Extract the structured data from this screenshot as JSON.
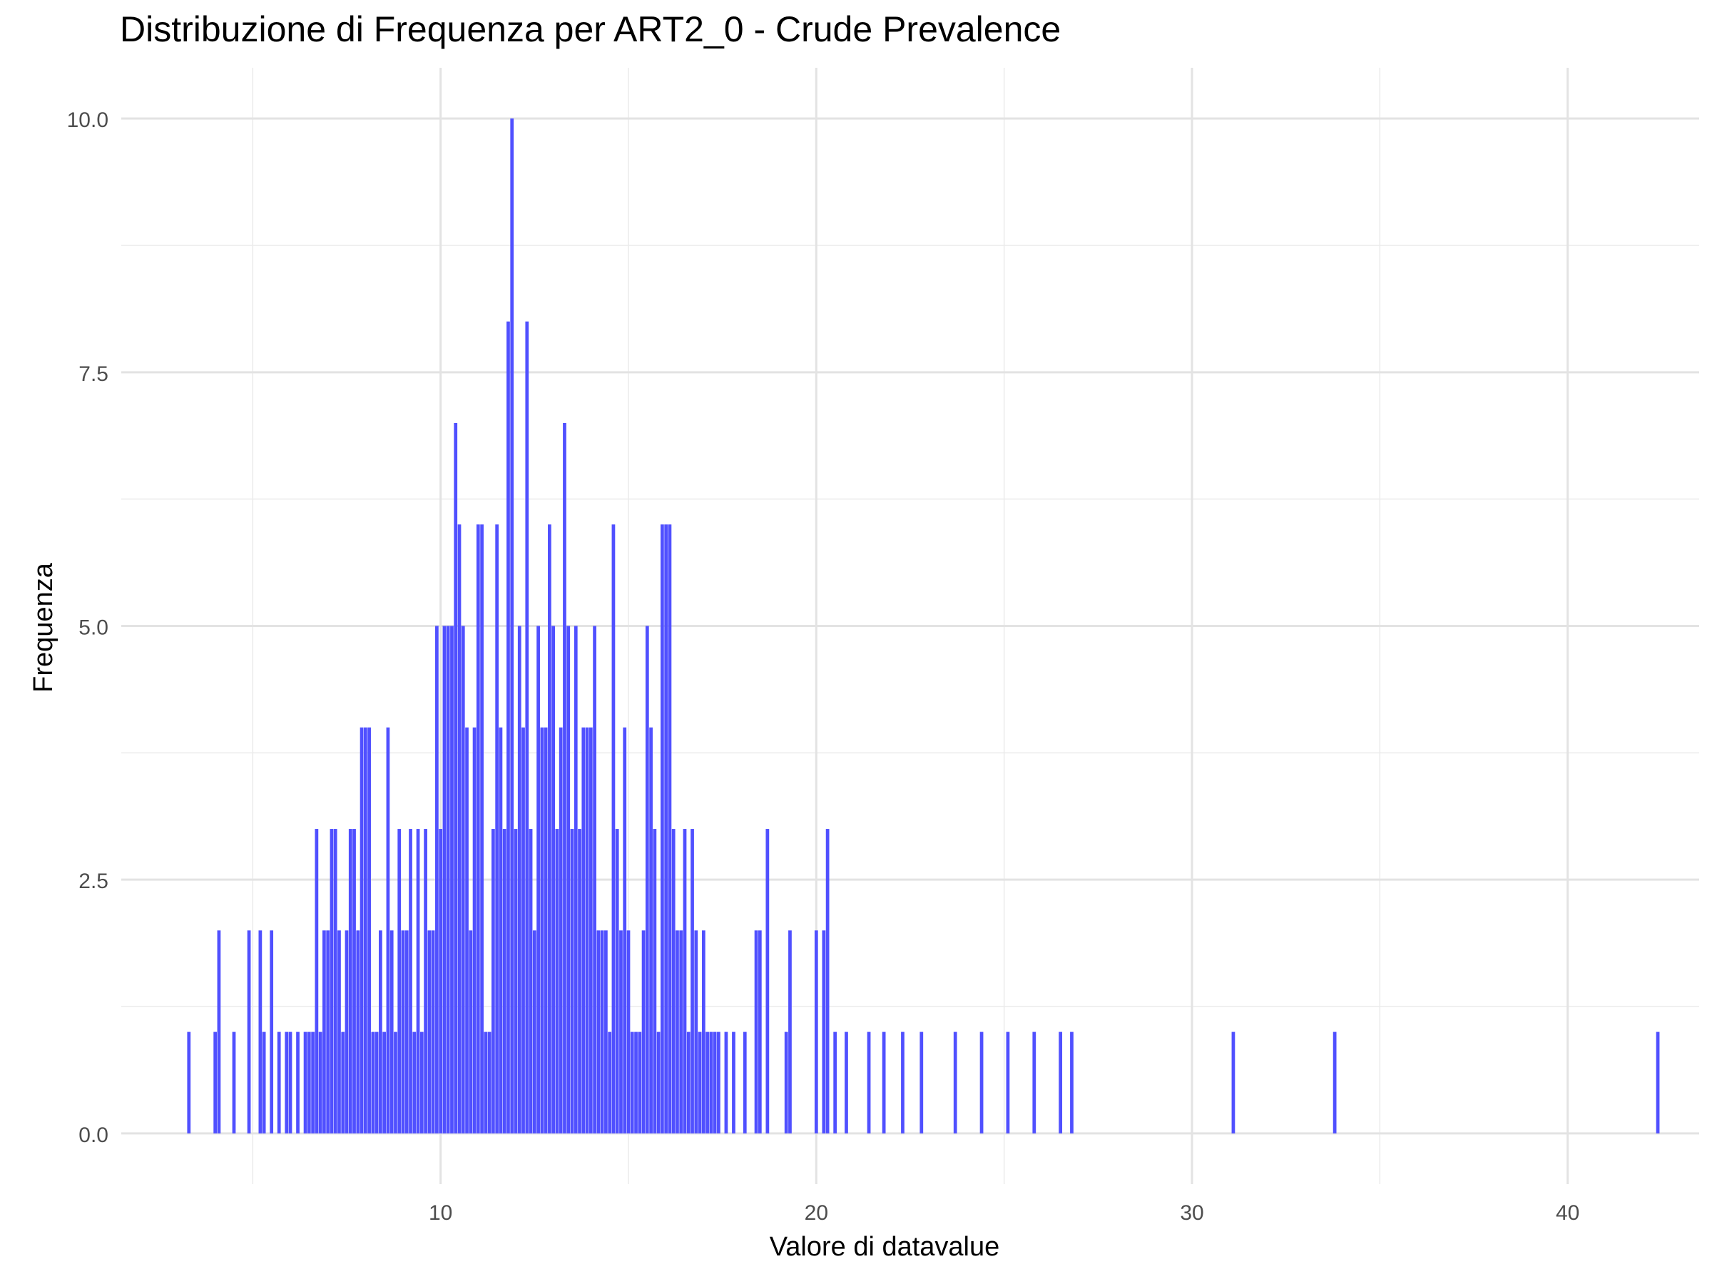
{
  "chart_data": {
    "type": "bar",
    "title": "Distribuzione di Frequenza per ART2_0 - Crude Prevalence",
    "xlabel": "Valore di datavalue",
    "ylabel": "Frequenza",
    "xlim": [
      1.5,
      43.5
    ],
    "ylim": [
      -0.5,
      10.5
    ],
    "x_ticks": [
      10,
      20,
      30,
      40
    ],
    "y_ticks": [
      "0.0",
      "2.5",
      "5.0",
      "7.5",
      "10.0"
    ],
    "grid": true,
    "bar_color": "#4c4cff",
    "bars": [
      {
        "x": 3.3,
        "y": 1
      },
      {
        "x": 4.0,
        "y": 1
      },
      {
        "x": 4.1,
        "y": 2
      },
      {
        "x": 4.5,
        "y": 1
      },
      {
        "x": 4.9,
        "y": 2
      },
      {
        "x": 5.2,
        "y": 2
      },
      {
        "x": 5.3,
        "y": 1
      },
      {
        "x": 5.5,
        "y": 2
      },
      {
        "x": 5.7,
        "y": 1
      },
      {
        "x": 5.9,
        "y": 1
      },
      {
        "x": 6.0,
        "y": 1
      },
      {
        "x": 6.2,
        "y": 1
      },
      {
        "x": 6.4,
        "y": 1
      },
      {
        "x": 6.5,
        "y": 1
      },
      {
        "x": 6.6,
        "y": 1
      },
      {
        "x": 6.7,
        "y": 3
      },
      {
        "x": 6.8,
        "y": 1
      },
      {
        "x": 6.9,
        "y": 2
      },
      {
        "x": 7.0,
        "y": 2
      },
      {
        "x": 7.1,
        "y": 3
      },
      {
        "x": 7.2,
        "y": 3
      },
      {
        "x": 7.3,
        "y": 2
      },
      {
        "x": 7.4,
        "y": 1
      },
      {
        "x": 7.5,
        "y": 2
      },
      {
        "x": 7.6,
        "y": 3
      },
      {
        "x": 7.7,
        "y": 3
      },
      {
        "x": 7.8,
        "y": 2
      },
      {
        "x": 7.9,
        "y": 4
      },
      {
        "x": 8.0,
        "y": 4
      },
      {
        "x": 8.1,
        "y": 4
      },
      {
        "x": 8.2,
        "y": 1
      },
      {
        "x": 8.3,
        "y": 1
      },
      {
        "x": 8.4,
        "y": 2
      },
      {
        "x": 8.5,
        "y": 1
      },
      {
        "x": 8.6,
        "y": 4
      },
      {
        "x": 8.7,
        "y": 2
      },
      {
        "x": 8.8,
        "y": 1
      },
      {
        "x": 8.9,
        "y": 3
      },
      {
        "x": 9.0,
        "y": 2
      },
      {
        "x": 9.1,
        "y": 2
      },
      {
        "x": 9.2,
        "y": 3
      },
      {
        "x": 9.3,
        "y": 1
      },
      {
        "x": 9.4,
        "y": 3
      },
      {
        "x": 9.5,
        "y": 1
      },
      {
        "x": 9.6,
        "y": 3
      },
      {
        "x": 9.7,
        "y": 2
      },
      {
        "x": 9.8,
        "y": 2
      },
      {
        "x": 9.9,
        "y": 5
      },
      {
        "x": 10.0,
        "y": 3
      },
      {
        "x": 10.1,
        "y": 5
      },
      {
        "x": 10.2,
        "y": 5
      },
      {
        "x": 10.3,
        "y": 5
      },
      {
        "x": 10.4,
        "y": 7
      },
      {
        "x": 10.5,
        "y": 6
      },
      {
        "x": 10.6,
        "y": 5
      },
      {
        "x": 10.7,
        "y": 4
      },
      {
        "x": 10.8,
        "y": 2
      },
      {
        "x": 10.9,
        "y": 4
      },
      {
        "x": 11.0,
        "y": 6
      },
      {
        "x": 11.1,
        "y": 6
      },
      {
        "x": 11.2,
        "y": 1
      },
      {
        "x": 11.3,
        "y": 1
      },
      {
        "x": 11.4,
        "y": 3
      },
      {
        "x": 11.5,
        "y": 6
      },
      {
        "x": 11.6,
        "y": 4
      },
      {
        "x": 11.7,
        "y": 3
      },
      {
        "x": 11.8,
        "y": 8
      },
      {
        "x": 11.9,
        "y": 10
      },
      {
        "x": 12.0,
        "y": 3
      },
      {
        "x": 12.1,
        "y": 5
      },
      {
        "x": 12.2,
        "y": 4
      },
      {
        "x": 12.3,
        "y": 8
      },
      {
        "x": 12.4,
        "y": 3
      },
      {
        "x": 12.5,
        "y": 2
      },
      {
        "x": 12.6,
        "y": 5
      },
      {
        "x": 12.7,
        "y": 4
      },
      {
        "x": 12.8,
        "y": 4
      },
      {
        "x": 12.9,
        "y": 6
      },
      {
        "x": 13.0,
        "y": 5
      },
      {
        "x": 13.1,
        "y": 3
      },
      {
        "x": 13.2,
        "y": 4
      },
      {
        "x": 13.3,
        "y": 7
      },
      {
        "x": 13.4,
        "y": 5
      },
      {
        "x": 13.5,
        "y": 3
      },
      {
        "x": 13.6,
        "y": 5
      },
      {
        "x": 13.7,
        "y": 3
      },
      {
        "x": 13.8,
        "y": 4
      },
      {
        "x": 13.9,
        "y": 4
      },
      {
        "x": 14.0,
        "y": 4
      },
      {
        "x": 14.1,
        "y": 5
      },
      {
        "x": 14.2,
        "y": 2
      },
      {
        "x": 14.3,
        "y": 2
      },
      {
        "x": 14.4,
        "y": 2
      },
      {
        "x": 14.5,
        "y": 1
      },
      {
        "x": 14.6,
        "y": 6
      },
      {
        "x": 14.7,
        "y": 3
      },
      {
        "x": 14.8,
        "y": 2
      },
      {
        "x": 14.9,
        "y": 4
      },
      {
        "x": 15.0,
        "y": 2
      },
      {
        "x": 15.1,
        "y": 1
      },
      {
        "x": 15.2,
        "y": 1
      },
      {
        "x": 15.3,
        "y": 1
      },
      {
        "x": 15.4,
        "y": 2
      },
      {
        "x": 15.5,
        "y": 5
      },
      {
        "x": 15.6,
        "y": 4
      },
      {
        "x": 15.7,
        "y": 3
      },
      {
        "x": 15.8,
        "y": 1
      },
      {
        "x": 15.9,
        "y": 6
      },
      {
        "x": 16.0,
        "y": 6
      },
      {
        "x": 16.1,
        "y": 6
      },
      {
        "x": 16.2,
        "y": 3
      },
      {
        "x": 16.3,
        "y": 2
      },
      {
        "x": 16.4,
        "y": 2
      },
      {
        "x": 16.5,
        "y": 3
      },
      {
        "x": 16.6,
        "y": 1
      },
      {
        "x": 16.7,
        "y": 3
      },
      {
        "x": 16.8,
        "y": 2
      },
      {
        "x": 16.9,
        "y": 1
      },
      {
        "x": 17.0,
        "y": 2
      },
      {
        "x": 17.1,
        "y": 1
      },
      {
        "x": 17.2,
        "y": 1
      },
      {
        "x": 17.3,
        "y": 1
      },
      {
        "x": 17.4,
        "y": 1
      },
      {
        "x": 17.6,
        "y": 1
      },
      {
        "x": 17.8,
        "y": 1
      },
      {
        "x": 18.1,
        "y": 1
      },
      {
        "x": 18.4,
        "y": 2
      },
      {
        "x": 18.5,
        "y": 2
      },
      {
        "x": 18.7,
        "y": 3
      },
      {
        "x": 19.2,
        "y": 1
      },
      {
        "x": 19.3,
        "y": 2
      },
      {
        "x": 20.0,
        "y": 2
      },
      {
        "x": 20.2,
        "y": 2
      },
      {
        "x": 20.3,
        "y": 3
      },
      {
        "x": 20.5,
        "y": 1
      },
      {
        "x": 20.8,
        "y": 1
      },
      {
        "x": 21.4,
        "y": 1
      },
      {
        "x": 21.8,
        "y": 1
      },
      {
        "x": 22.3,
        "y": 1
      },
      {
        "x": 22.8,
        "y": 1
      },
      {
        "x": 23.7,
        "y": 1
      },
      {
        "x": 24.4,
        "y": 1
      },
      {
        "x": 25.1,
        "y": 1
      },
      {
        "x": 25.8,
        "y": 1
      },
      {
        "x": 26.5,
        "y": 1
      },
      {
        "x": 26.8,
        "y": 1
      },
      {
        "x": 31.1,
        "y": 1
      },
      {
        "x": 33.8,
        "y": 1
      },
      {
        "x": 42.4,
        "y": 1
      }
    ]
  }
}
